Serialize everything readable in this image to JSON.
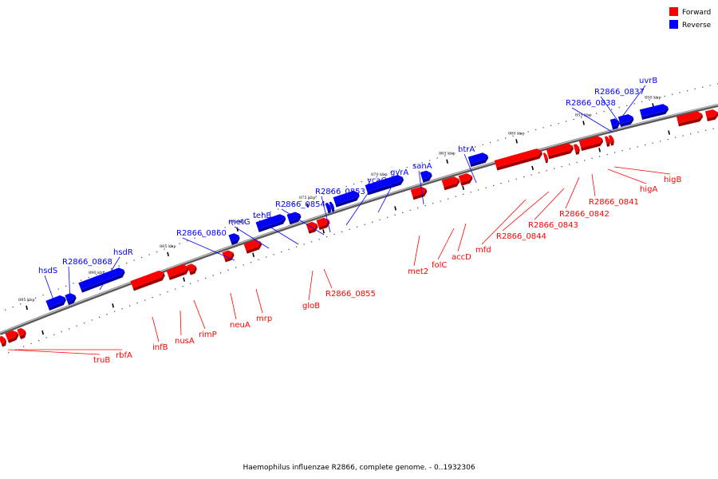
{
  "legend": [
    {
      "label": "Forward",
      "color": "#ff0000"
    },
    {
      "label": "Reverse",
      "color": "#0000ff"
    }
  ],
  "caption": "Haemophilus influenzae R2866, complete genome. - 0..1932306",
  "colors": {
    "forward": "#ff0000",
    "reverse": "#0000ff",
    "backbone": "#808080"
  },
  "ticks": [
    "850 kbp",
    "855 kbp",
    "860 kbp",
    "865 kbp",
    "870 kbp",
    "875 kbp",
    "880 kbp",
    "885 kbp",
    "890 kbp",
    "895 kbp"
  ],
  "genes": {
    "reverse": [
      "uvrB",
      "R2866_0837",
      "R2866_0838",
      "htrA",
      "sanA",
      "gyrA",
      "ycaO",
      "R2866_0853",
      "R2866_0854",
      "tehB",
      "metG",
      "R2866_0860",
      "hsdR",
      "R2866_0868",
      "hsdS"
    ],
    "forward": [
      "higB",
      "higA",
      "R2866_0841",
      "R2866_0842",
      "R2866_0843",
      "R2866_0844",
      "mfd",
      "accD",
      "folC",
      "met2",
      "R2866_0855",
      "gloB",
      "mrp",
      "neuA",
      "rimP",
      "nusA",
      "infB",
      "rbfA",
      "truB"
    ]
  }
}
